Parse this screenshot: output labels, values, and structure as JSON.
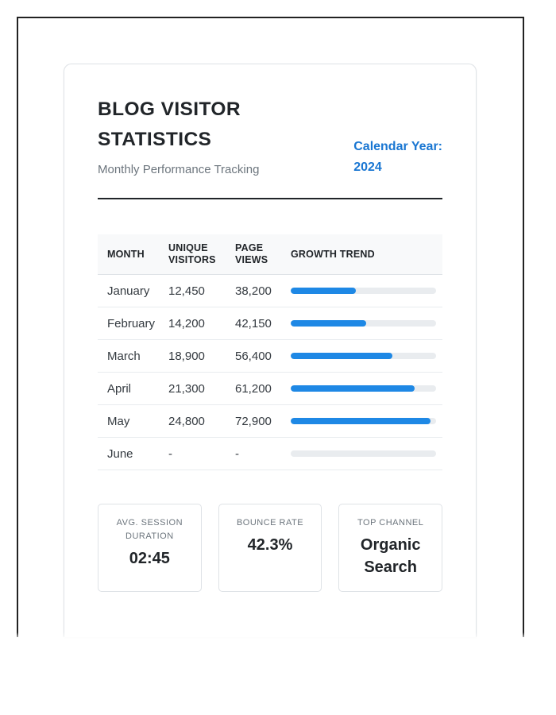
{
  "header": {
    "title": "BLOG VISITOR STATISTICS",
    "subtitle": "Monthly Performance Tracking",
    "calendar_label": "Calendar Year:",
    "calendar_value": "2024"
  },
  "table": {
    "columns": [
      "MONTH",
      "UNIQUE VISITORS",
      "PAGE VIEWS",
      "GROWTH TREND"
    ],
    "rows": [
      {
        "month": "January",
        "unique_visitors": "12,450",
        "page_views": "38,200",
        "growth_pct": 45
      },
      {
        "month": "February",
        "unique_visitors": "14,200",
        "page_views": "42,150",
        "growth_pct": 52
      },
      {
        "month": "March",
        "unique_visitors": "18,900",
        "page_views": "56,400",
        "growth_pct": 70
      },
      {
        "month": "April",
        "unique_visitors": "21,300",
        "page_views": "61,200",
        "growth_pct": 85
      },
      {
        "month": "May",
        "unique_visitors": "24,800",
        "page_views": "72,900",
        "growth_pct": 96
      },
      {
        "month": "June",
        "unique_visitors": "-",
        "page_views": "-",
        "growth_pct": 0
      }
    ]
  },
  "stats": [
    {
      "label": "AVG. SESSION DURATION",
      "value": "02:45"
    },
    {
      "label": "BOUNCE RATE",
      "value": "42.3%"
    },
    {
      "label": "TOP CHANNEL",
      "value": "Organic Search"
    }
  ],
  "theme": {
    "accent_blue": "#1976d2",
    "bar_fill_blue": "#1e88e5",
    "bar_track_gray": "#e9ecef",
    "frame_black": "#222222",
    "border_gray": "#dee2e6"
  }
}
